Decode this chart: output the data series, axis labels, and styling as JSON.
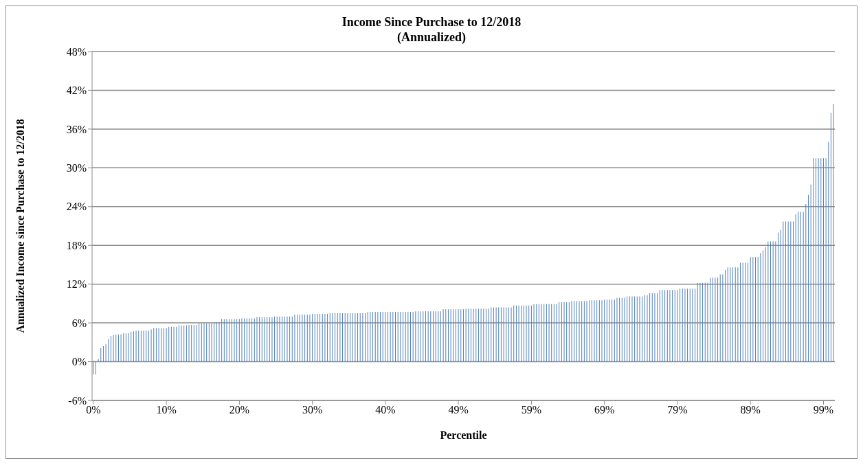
{
  "chart_data": {
    "type": "bar",
    "title": "Income Since Purchase to 12/2018",
    "subtitle": "(Annualized)",
    "xlabel": "Percentile",
    "ylabel": "Annualized Income since Purchase to 12/2018",
    "categories": [
      "0%",
      null,
      null,
      null,
      null,
      null,
      null,
      null,
      null,
      null,
      null,
      null,
      null,
      null,
      null,
      null,
      null,
      null,
      null,
      null,
      null,
      null,
      null,
      null,
      null,
      null,
      null,
      null,
      null,
      "10%",
      null,
      null,
      null,
      null,
      null,
      null,
      null,
      null,
      null,
      null,
      null,
      null,
      null,
      null,
      null,
      null,
      null,
      null,
      null,
      null,
      null,
      null,
      null,
      null,
      null,
      null,
      null,
      null,
      "20%",
      null,
      null,
      null,
      null,
      null,
      null,
      null,
      null,
      null,
      null,
      null,
      null,
      null,
      null,
      null,
      null,
      null,
      null,
      null,
      null,
      null,
      null,
      null,
      null,
      null,
      null,
      null,
      null,
      "30%",
      null,
      null,
      null,
      null,
      null,
      null,
      null,
      null,
      null,
      null,
      null,
      null,
      null,
      null,
      null,
      null,
      null,
      null,
      null,
      null,
      null,
      null,
      null,
      null,
      null,
      null,
      null,
      null,
      "40%",
      null,
      null,
      null,
      null,
      null,
      null,
      null,
      null,
      null,
      null,
      null,
      null,
      null,
      null,
      null,
      null,
      null,
      null,
      null,
      null,
      null,
      null,
      null,
      null,
      null,
      null,
      null,
      null,
      "49%",
      null,
      null,
      null,
      null,
      null,
      null,
      null,
      null,
      null,
      null,
      null,
      null,
      null,
      null,
      null,
      null,
      null,
      null,
      null,
      null,
      null,
      null,
      null,
      null,
      null,
      null,
      null,
      null,
      "59%",
      null,
      null,
      null,
      null,
      null,
      null,
      null,
      null,
      null,
      null,
      null,
      null,
      null,
      null,
      null,
      null,
      null,
      null,
      null,
      null,
      null,
      null,
      null,
      null,
      null,
      null,
      null,
      null,
      "69%",
      null,
      null,
      null,
      null,
      null,
      null,
      null,
      null,
      null,
      null,
      null,
      null,
      null,
      null,
      null,
      null,
      null,
      null,
      null,
      null,
      null,
      null,
      null,
      null,
      null,
      null,
      null,
      null,
      "79%",
      null,
      null,
      null,
      null,
      null,
      null,
      null,
      null,
      null,
      null,
      null,
      null,
      null,
      null,
      null,
      null,
      null,
      null,
      null,
      null,
      null,
      null,
      null,
      null,
      null,
      null,
      null,
      null,
      "89%",
      null,
      null,
      null,
      null,
      null,
      null,
      null,
      null,
      null,
      null,
      null,
      null,
      null,
      null,
      null,
      null,
      null,
      null,
      null,
      null,
      null,
      null,
      null,
      null,
      null,
      null,
      null,
      null,
      "99%",
      null,
      null,
      null,
      null
    ],
    "values": [
      -2.0,
      -2.0,
      0.4,
      2.1,
      2.4,
      2.7,
      3.5,
      4.0,
      4.1,
      4.2,
      4.2,
      4.2,
      4.4,
      4.4,
      4.4,
      4.6,
      4.7,
      4.8,
      4.8,
      4.8,
      4.8,
      4.8,
      4.8,
      5.0,
      5.2,
      5.2,
      5.2,
      5.2,
      5.2,
      5.2,
      5.4,
      5.4,
      5.4,
      5.4,
      5.6,
      5.6,
      5.6,
      5.6,
      5.7,
      5.7,
      5.7,
      5.7,
      5.9,
      5.9,
      5.9,
      5.9,
      5.9,
      5.9,
      6.1,
      6.1,
      6.1,
      6.6,
      6.6,
      6.6,
      6.6,
      6.6,
      6.6,
      6.6,
      6.6,
      6.7,
      6.7,
      6.7,
      6.7,
      6.7,
      6.7,
      6.9,
      6.9,
      6.9,
      6.9,
      6.9,
      6.9,
      6.9,
      7.0,
      7.0,
      7.0,
      7.0,
      7.0,
      7.0,
      7.0,
      7.0,
      7.3,
      7.3,
      7.3,
      7.3,
      7.3,
      7.3,
      7.3,
      7.4,
      7.4,
      7.4,
      7.4,
      7.4,
      7.4,
      7.4,
      7.5,
      7.5,
      7.5,
      7.5,
      7.5,
      7.5,
      7.5,
      7.5,
      7.5,
      7.5,
      7.5,
      7.5,
      7.5,
      7.5,
      7.5,
      7.7,
      7.7,
      7.7,
      7.7,
      7.7,
      7.7,
      7.7,
      7.7,
      7.7,
      7.7,
      7.7,
      7.7,
      7.7,
      7.7,
      7.7,
      7.7,
      7.7,
      7.7,
      7.7,
      7.8,
      7.8,
      7.8,
      7.8,
      7.8,
      7.8,
      7.8,
      7.8,
      7.8,
      7.8,
      7.8,
      8.1,
      8.1,
      8.1,
      8.1,
      8.1,
      8.1,
      8.1,
      8.1,
      8.1,
      8.2,
      8.2,
      8.2,
      8.2,
      8.2,
      8.2,
      8.2,
      8.2,
      8.2,
      8.2,
      8.4,
      8.4,
      8.4,
      8.4,
      8.4,
      8.4,
      8.4,
      8.4,
      8.4,
      8.7,
      8.7,
      8.7,
      8.7,
      8.7,
      8.7,
      8.7,
      8.7,
      8.9,
      8.9,
      8.9,
      8.9,
      8.9,
      8.9,
      8.9,
      8.9,
      8.9,
      8.9,
      9.2,
      9.2,
      9.2,
      9.2,
      9.2,
      9.4,
      9.4,
      9.4,
      9.4,
      9.4,
      9.4,
      9.4,
      9.5,
      9.5,
      9.5,
      9.5,
      9.5,
      9.5,
      9.6,
      9.6,
      9.6,
      9.6,
      9.6,
      9.9,
      9.9,
      9.9,
      9.9,
      10.1,
      10.1,
      10.1,
      10.1,
      10.1,
      10.1,
      10.1,
      10.3,
      10.3,
      10.6,
      10.6,
      10.6,
      10.6,
      11.1,
      11.1,
      11.1,
      11.1,
      11.1,
      11.1,
      11.1,
      11.1,
      11.3,
      11.3,
      11.3,
      11.3,
      11.3,
      11.3,
      11.3,
      12.2,
      12.2,
      12.2,
      12.2,
      12.2,
      13.0,
      13.0,
      13.0,
      13.0,
      13.5,
      13.5,
      14.2,
      14.6,
      14.6,
      14.6,
      14.6,
      14.6,
      15.3,
      15.3,
      15.3,
      15.3,
      16.2,
      16.2,
      16.2,
      16.2,
      16.8,
      17.2,
      17.7,
      18.6,
      18.6,
      18.6,
      18.6,
      20.0,
      20.4,
      21.7,
      21.7,
      21.7,
      21.7,
      21.7,
      22.8,
      23.2,
      23.2,
      23.2,
      24.4,
      25.8,
      27.4,
      31.5,
      31.5,
      31.5,
      31.5,
      31.5,
      31.5,
      34.0,
      38.5,
      39.9
    ],
    "color": "#4f81bd",
    "ylim": [
      -6,
      48
    ],
    "yticks": [
      {
        "value": -6,
        "label": "-6%"
      },
      {
        "value": 0,
        "label": "0%"
      },
      {
        "value": 6,
        "label": "6%"
      },
      {
        "value": 12,
        "label": "12%"
      },
      {
        "value": 18,
        "label": "18%"
      },
      {
        "value": 24,
        "label": "24%"
      },
      {
        "value": 30,
        "label": "30%"
      },
      {
        "value": 36,
        "label": "36%"
      },
      {
        "value": 42,
        "label": "42%"
      },
      {
        "value": 48,
        "label": "48%"
      }
    ],
    "grid": "y",
    "legend": false
  }
}
